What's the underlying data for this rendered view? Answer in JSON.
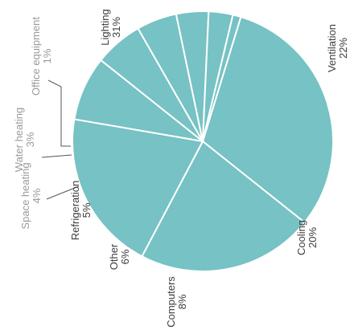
{
  "chart_data": {
    "type": "pie",
    "title": "",
    "categories": [
      "Lighting",
      "Ventilation",
      "Cooling",
      "Computers",
      "Other",
      "Refrigeration",
      "Space heating",
      "Water heating",
      "Office equipment"
    ],
    "values": [
      31,
      22,
      20,
      8,
      6,
      5,
      4,
      3,
      1
    ],
    "value_labels": [
      "31%",
      "22%",
      "20%",
      "8%",
      "6%",
      "5%",
      "4%",
      "3%",
      "1%"
    ],
    "slice_color": "#76c2c4",
    "separator_color": "#ffffff",
    "label_color": "#3c3c3c",
    "faint_label_color": "#9a9a9a",
    "orientation": "rotated 90° counter-clockwise",
    "legend": "none"
  }
}
